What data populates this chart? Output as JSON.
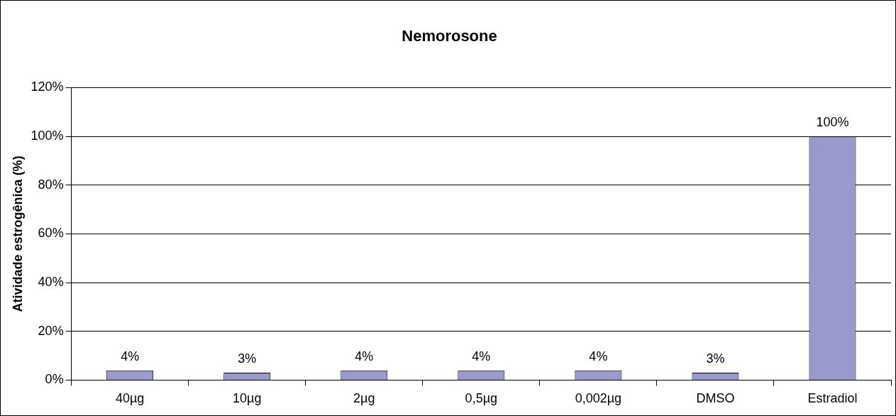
{
  "chart_data": {
    "type": "bar",
    "title": "Nemorosone",
    "ylabel": "Atividade estrogênica (%)",
    "categories": [
      "40µg",
      "10µg",
      "2µg",
      "0,5µg",
      "0,002µg",
      "DMSO",
      "Estradiol"
    ],
    "values": [
      4,
      3,
      4,
      4,
      4,
      3,
      100
    ],
    "value_labels": [
      "4%",
      "3%",
      "4%",
      "4%",
      "4%",
      "3%",
      "100%"
    ],
    "color": "#9999cc",
    "ylim": [
      0,
      120
    ],
    "yticks": [
      {
        "value": 0,
        "label": "0%"
      },
      {
        "value": 20,
        "label": "20%"
      },
      {
        "value": 40,
        "label": "40%"
      },
      {
        "value": 60,
        "label": "60%"
      },
      {
        "value": 80,
        "label": "80%"
      },
      {
        "value": 100,
        "label": "100%"
      },
      {
        "value": 120,
        "label": "120%"
      }
    ],
    "grid": "y",
    "legend": false
  }
}
